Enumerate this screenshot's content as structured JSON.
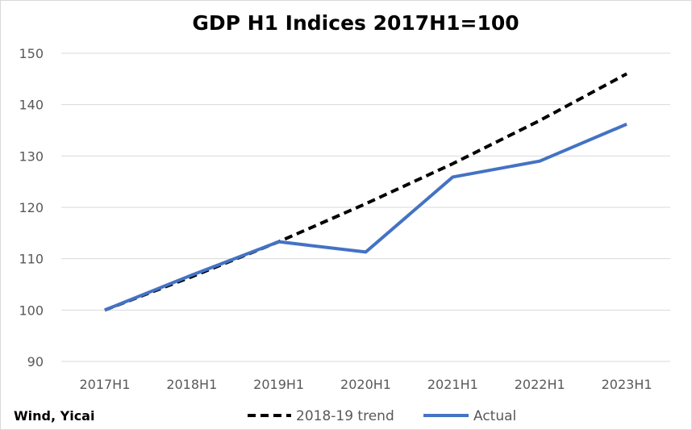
{
  "chart_data": {
    "type": "line",
    "title": "GDP H1 Indices 2017H1=100",
    "categories": [
      "2017H1",
      "2018H1",
      "2019H1",
      "2020H1",
      "2021H1",
      "2022H1",
      "2023H1"
    ],
    "series": [
      {
        "name": "2018-19 trend",
        "values": [
          100,
          106.5,
          113.3,
          120.7,
          128.5,
          136.9,
          146.0
        ],
        "color": "#000000",
        "style": "dashed"
      },
      {
        "name": "Actual",
        "values": [
          100,
          106.8,
          113.3,
          111.3,
          125.9,
          129.0,
          136.2
        ],
        "color": "#4472C4",
        "style": "solid"
      }
    ],
    "ylim": [
      90,
      150
    ],
    "yticks": [
      90,
      100,
      110,
      120,
      130,
      140,
      150
    ],
    "grid": true,
    "legend": "bottom",
    "source": "Wind, Yicai"
  }
}
